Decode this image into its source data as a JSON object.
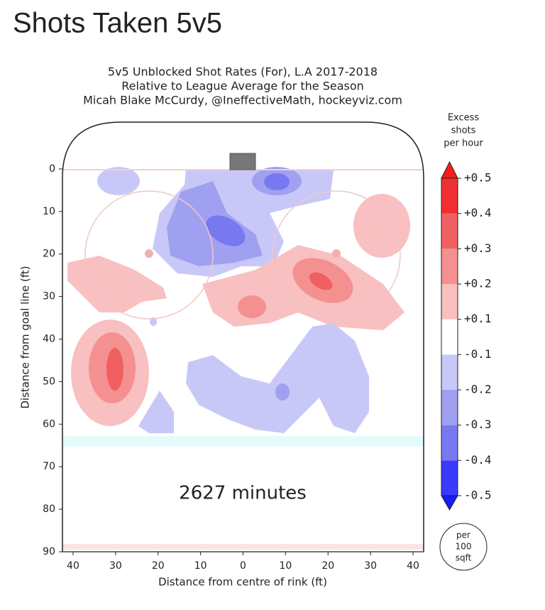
{
  "page_title": "Shots Taken 5v5",
  "chart_data": {
    "type": "heatmap",
    "title": [
      "5v5 Unblocked Shot Rates (For), L.A 2017-2018",
      "Relative to League Average for the Season",
      "Micah Blake McCurdy, @IneffectiveMath, hockeyviz.com"
    ],
    "x_label": "Distance from centre of rink (ft)",
    "y_label": "Distance from goal line (ft)",
    "annotation": "2627 minutes",
    "xlim": [
      -42.5,
      42.5
    ],
    "xticks": [
      {
        "value": -40,
        "label": "40"
      },
      {
        "value": -30,
        "label": "30"
      },
      {
        "value": -20,
        "label": "20"
      },
      {
        "value": -10,
        "label": "10"
      },
      0,
      10,
      20,
      30,
      40
    ],
    "ylim": [
      -11,
      90
    ],
    "y_inverted": true,
    "yticks": [
      0,
      10,
      20,
      30,
      40,
      50,
      60,
      70,
      80,
      90
    ],
    "colorbar": {
      "title": [
        "Excess",
        "shots",
        "per hour"
      ],
      "levels": [
        -0.5,
        -0.4,
        -0.3,
        -0.2,
        -0.1,
        {
          "value": 0.1,
          "label": "+0.1"
        },
        {
          "value": 0.2,
          "label": "+0.2"
        },
        {
          "value": 0.3,
          "label": "+0.3"
        },
        {
          "value": 0.4,
          "label": "+0.4"
        },
        {
          "value": 0.5,
          "label": "+0.5"
        }
      ],
      "colors": [
        "#1a1aff",
        "#3a3aff",
        "#7878f0",
        "#a0a0f0",
        "#c8c8f8",
        "#ffffff",
        "#f8c0c0",
        "#f59090",
        "#f06060",
        "#f03030",
        "#ff1a1a"
      ],
      "unit": [
        "per",
        "100",
        "sqft"
      ]
    }
  }
}
